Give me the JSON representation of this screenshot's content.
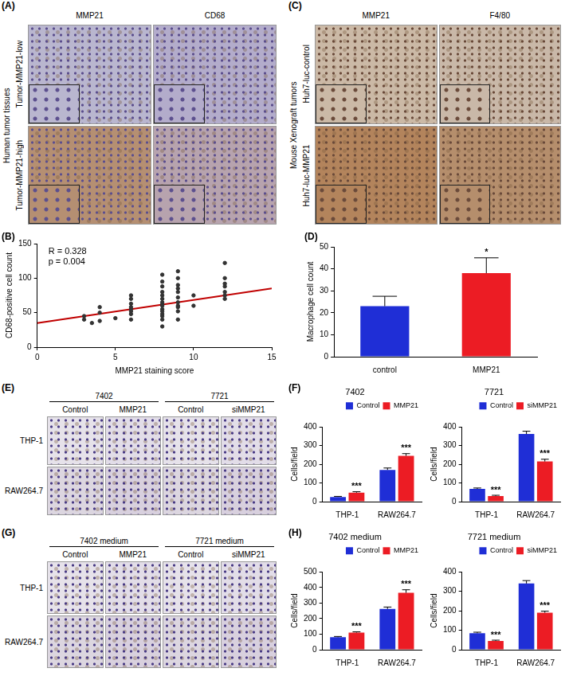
{
  "image_panels": [
    {
      "label": "(A)",
      "side_label": "Human tumor tissues",
      "columns": [
        "MMP21",
        "CD68"
      ],
      "rows": [
        "Tumor-MMP21-low",
        "Tumor-MMP21-high"
      ]
    },
    {
      "label": "(C)",
      "side_label": "Mouse Xenograft tumors",
      "columns": [
        "MMP21",
        "F4/80"
      ],
      "rows": [
        "Huh7-luc-control",
        "Huh7-luc-MMP21"
      ]
    },
    {
      "label": "(E)",
      "groups": [
        {
          "title": "7402",
          "columns": [
            "Control",
            "MMP21"
          ]
        },
        {
          "title": "7721",
          "columns": [
            "Control",
            "siMMP21"
          ]
        }
      ],
      "rows": [
        "THP-1",
        "RAW264.7"
      ]
    },
    {
      "label": "(G)",
      "groups": [
        {
          "title": "7402 medium",
          "columns": [
            "Control",
            "MMP21"
          ]
        },
        {
          "title": "7721 medium",
          "columns": [
            "Control",
            "siMMP21"
          ]
        }
      ],
      "rows": [
        "THP-1",
        "RAW264.7"
      ]
    }
  ],
  "chart_data": [
    {
      "panel_label": "(B)",
      "type": "scatter",
      "x_label": "MMP21 staining score",
      "y_label": "CD68-positive cell count",
      "xlim": [
        0,
        15
      ],
      "xticks": [
        0,
        5,
        10,
        15
      ],
      "ylim": [
        0,
        150
      ],
      "yticks": [
        0,
        50,
        100,
        150
      ],
      "grid": false,
      "color": "#333333",
      "points": {
        "x": [
          3,
          3,
          3.5,
          4,
          4,
          4,
          5,
          6,
          6,
          6,
          6,
          6,
          6,
          6,
          6,
          8,
          8,
          8,
          8,
          8,
          8,
          8,
          8,
          8,
          8,
          8,
          8,
          8,
          8,
          8,
          9,
          9,
          9,
          9,
          9,
          9,
          9,
          9,
          9,
          9,
          9,
          10,
          10,
          12,
          12,
          12,
          12,
          12,
          12,
          12
        ],
        "y": [
          45,
          40,
          35,
          38,
          50,
          58,
          42,
          40,
          48,
          52,
          55,
          58,
          63,
          70,
          75,
          30,
          40,
          45,
          48,
          52,
          55,
          60,
          62,
          65,
          70,
          75,
          80,
          88,
          95,
          105,
          40,
          52,
          58,
          60,
          65,
          72,
          80,
          85,
          90,
          100,
          110,
          60,
          75,
          70,
          75,
          80,
          88,
          92,
          100,
          122
        ]
      },
      "fit_line": {
        "x": [
          0,
          15
        ],
        "y": [
          35,
          85
        ],
        "color": "#c00000"
      },
      "annotations": [
        "R = 0.328",
        "p = 0.004"
      ]
    },
    {
      "panel_label": "(D)",
      "type": "bar",
      "y_label": "Macrophage cell count",
      "categories": [
        "control",
        "MMP21"
      ],
      "values": [
        23,
        38
      ],
      "errors": [
        4.5,
        7
      ],
      "colors": [
        "#1f2ed6",
        "#ec1c24"
      ],
      "ylim": [
        0,
        50
      ],
      "yticks": [
        0,
        10,
        20,
        30,
        40,
        50
      ],
      "grid": false,
      "annotations": [
        {
          "category": "MMP21",
          "text": "*"
        }
      ]
    },
    {
      "panel_label": "(F)",
      "type": "bar",
      "title": "7402",
      "y_label": "Cells/field",
      "categories": [
        "THP-1",
        "RAW264.7"
      ],
      "series": [
        {
          "name": "Control",
          "color": "#1f2ed6",
          "values": [
            25,
            170
          ],
          "errors": [
            3,
            10
          ]
        },
        {
          "name": "MMP21",
          "color": "#ec1c24",
          "values": [
            48,
            245
          ],
          "errors": [
            5,
            12
          ]
        }
      ],
      "ylim": [
        0,
        400
      ],
      "yticks": [
        0,
        100,
        200,
        300,
        400
      ],
      "grid": false,
      "legend": "top-right",
      "annotations": [
        {
          "category": "THP-1",
          "series": "MMP21",
          "text": "***"
        },
        {
          "category": "RAW264.7",
          "series": "MMP21",
          "text": "***"
        }
      ]
    },
    {
      "type": "bar",
      "title": "7721",
      "y_label": "Cells/field",
      "categories": [
        "THP-1",
        "RAW264.7"
      ],
      "series": [
        {
          "name": "Control",
          "color": "#1f2ed6",
          "values": [
            68,
            362
          ],
          "errors": [
            5,
            15
          ]
        },
        {
          "name": "siMMP21",
          "color": "#ec1c24",
          "values": [
            30,
            215
          ],
          "errors": [
            4,
            12
          ]
        }
      ],
      "ylim": [
        0,
        400
      ],
      "yticks": [
        0,
        100,
        200,
        300,
        400
      ],
      "grid": false,
      "legend": "top-right",
      "annotations": [
        {
          "category": "THP-1",
          "series": "siMMP21",
          "text": "***"
        },
        {
          "category": "RAW264.7",
          "series": "siMMP21",
          "text": "***"
        }
      ]
    },
    {
      "panel_label": "(H)",
      "type": "bar",
      "title": "7402 medium",
      "y_label": "Cells/field",
      "categories": [
        "THP-1",
        "RAW264.7"
      ],
      "series": [
        {
          "name": "Control",
          "color": "#1f2ed6",
          "values": [
            80,
            262
          ],
          "errors": [
            5,
            12
          ]
        },
        {
          "name": "MMP21",
          "color": "#ec1c24",
          "values": [
            110,
            365
          ],
          "errors": [
            5,
            20
          ]
        }
      ],
      "ylim": [
        0,
        500
      ],
      "yticks": [
        0,
        100,
        200,
        300,
        400,
        500
      ],
      "grid": false,
      "legend": "top-right",
      "annotations": [
        {
          "category": "THP-1",
          "series": "MMP21",
          "text": "***"
        },
        {
          "category": "RAW264.7",
          "series": "MMP21",
          "text": "***"
        }
      ]
    },
    {
      "type": "bar",
      "title": "7721 medium",
      "y_label": "Cells/field",
      "categories": [
        "THP-1",
        "RAW264.7"
      ],
      "series": [
        {
          "name": "Control",
          "color": "#1f2ed6",
          "values": [
            85,
            340
          ],
          "errors": [
            5,
            15
          ]
        },
        {
          "name": "siMMP21",
          "color": "#ec1c24",
          "values": [
            45,
            190
          ],
          "errors": [
            4,
            8
          ]
        }
      ],
      "ylim": [
        0,
        400
      ],
      "yticks": [
        0,
        100,
        200,
        300,
        400
      ],
      "grid": false,
      "legend": "top-right",
      "annotations": [
        {
          "category": "THP-1",
          "series": "siMMP21",
          "text": "***"
        },
        {
          "category": "RAW264.7",
          "series": "siMMP21",
          "text": "***"
        }
      ]
    }
  ]
}
